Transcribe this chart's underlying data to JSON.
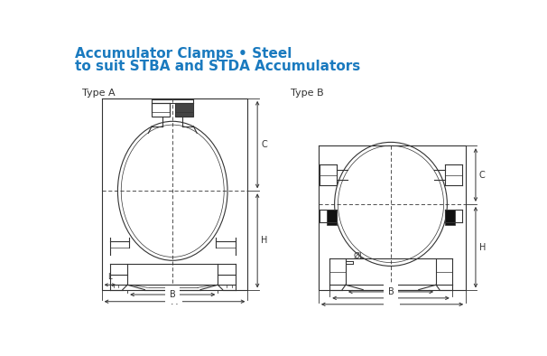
{
  "title_line1": "Accumulator Clamps • Steel",
  "title_line2": "to suit STBA and STDA Accumulators",
  "title_color": "#1a7abf",
  "title_fontsize": 11,
  "label_A": "Type A",
  "label_B": "Type B",
  "bg_color": "#ffffff",
  "line_color": "#333333",
  "dim_color": "#333333",
  "type_label_fontsize": 8
}
